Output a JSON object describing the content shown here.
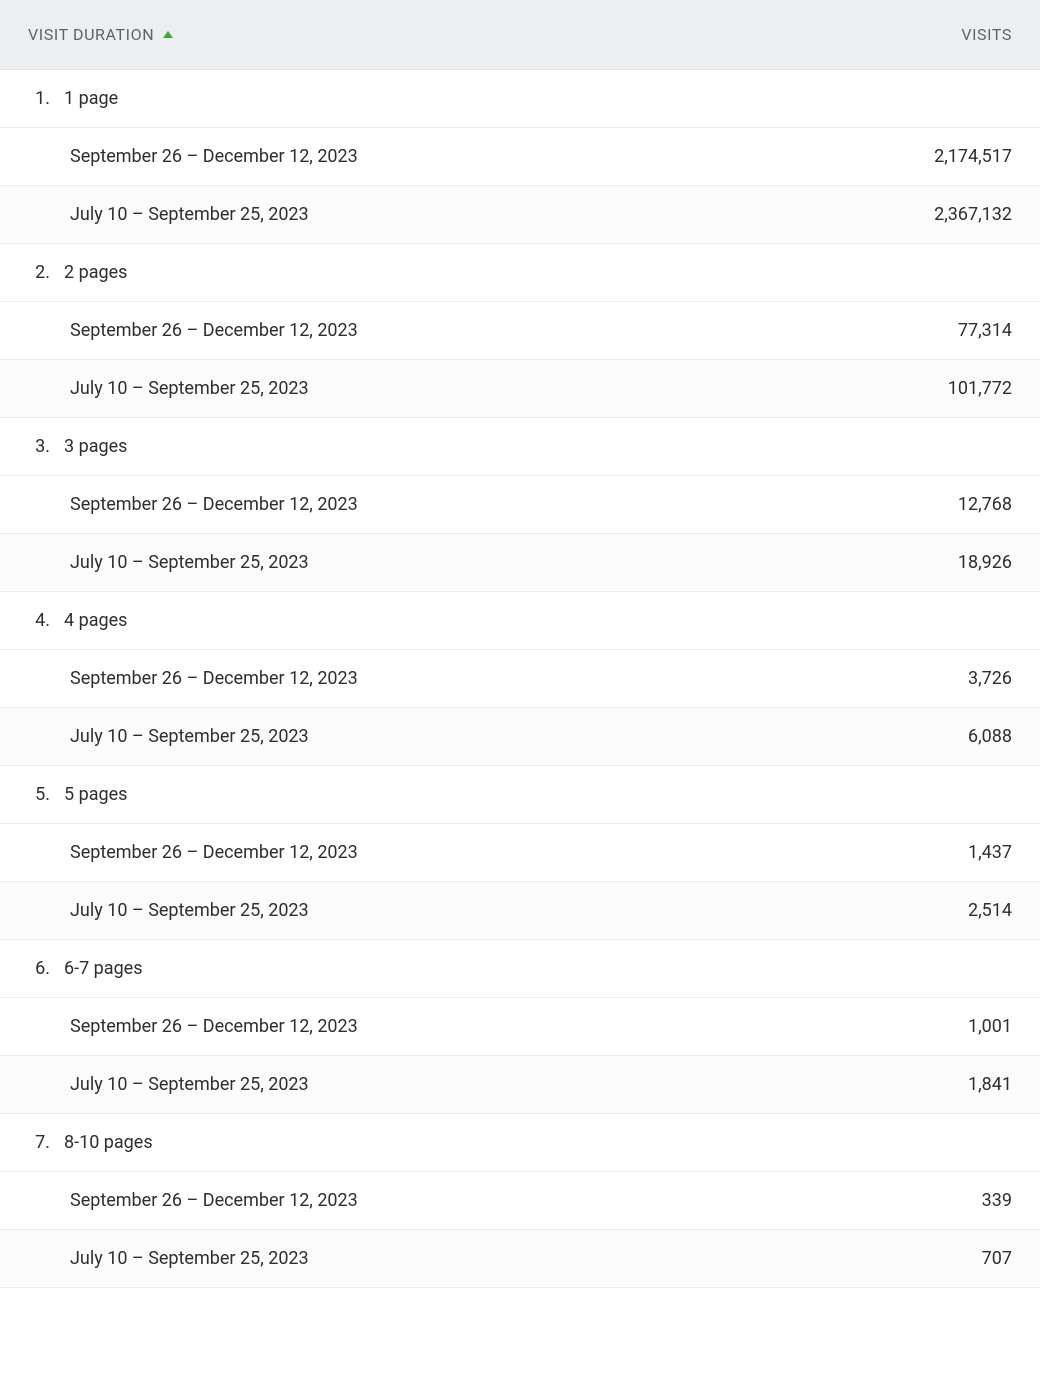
{
  "header": {
    "sort_column_label": "VISIT DURATION",
    "sort_direction": "asc",
    "visits_label": "VISITS"
  },
  "colors": {
    "header_bg": "#edeeef",
    "header_text": "#606469",
    "sort_icon": "#3fa535",
    "row_border": "#ececec",
    "body_text": "#2f2f2f",
    "alt_row_bg": "#fbfbfb",
    "bg": "#ffffff"
  },
  "groups": [
    {
      "index": "1.",
      "label": "1 page",
      "rows": [
        {
          "period": "September 26 – December 12, 2023",
          "visits": "2,174,517"
        },
        {
          "period": "July 10 – September 25, 2023",
          "visits": "2,367,132"
        }
      ]
    },
    {
      "index": "2.",
      "label": "2 pages",
      "rows": [
        {
          "period": "September 26 – December 12, 2023",
          "visits": "77,314"
        },
        {
          "period": "July 10 – September 25, 2023",
          "visits": "101,772"
        }
      ]
    },
    {
      "index": "3.",
      "label": "3 pages",
      "rows": [
        {
          "period": "September 26 – December 12, 2023",
          "visits": "12,768"
        },
        {
          "period": "July 10 – September 25, 2023",
          "visits": "18,926"
        }
      ]
    },
    {
      "index": "4.",
      "label": "4 pages",
      "rows": [
        {
          "period": "September 26 – December 12, 2023",
          "visits": "3,726"
        },
        {
          "period": "July 10 – September 25, 2023",
          "visits": "6,088"
        }
      ]
    },
    {
      "index": "5.",
      "label": "5 pages",
      "rows": [
        {
          "period": "September 26 – December 12, 2023",
          "visits": "1,437"
        },
        {
          "period": "July 10 – September 25, 2023",
          "visits": "2,514"
        }
      ]
    },
    {
      "index": "6.",
      "label": "6-7 pages",
      "rows": [
        {
          "period": "September 26 – December 12, 2023",
          "visits": "1,001"
        },
        {
          "period": "July 10 – September 25, 2023",
          "visits": "1,841"
        }
      ]
    },
    {
      "index": "7.",
      "label": "8-10 pages",
      "rows": [
        {
          "period": "September 26 – December 12, 2023",
          "visits": "339"
        },
        {
          "period": "July 10 – September 25, 2023",
          "visits": "707"
        }
      ]
    }
  ]
}
